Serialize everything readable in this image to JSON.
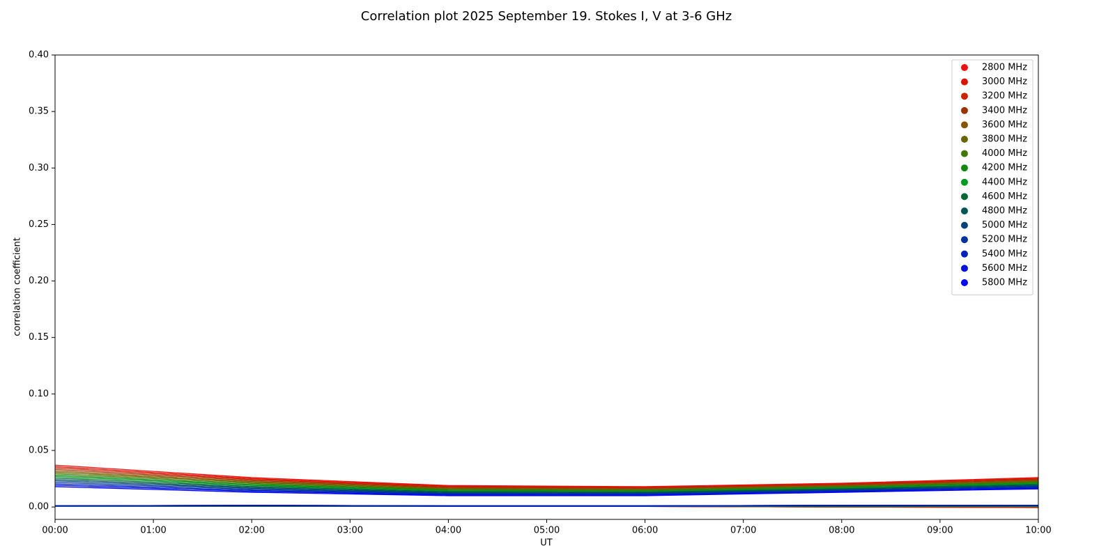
{
  "chart_data": {
    "type": "line",
    "title": "Correlation plot 2025 September 19. Stokes I, V at 3-6 GHz",
    "xlabel": "UT",
    "ylabel": "correlation coefficient",
    "x": [
      0,
      2,
      4,
      6,
      8,
      10
    ],
    "xlim": [
      0,
      10
    ],
    "xticks": [
      {
        "value": 0,
        "label": "00:00"
      },
      {
        "value": 1,
        "label": "01:00"
      },
      {
        "value": 2,
        "label": "02:00"
      },
      {
        "value": 3,
        "label": "03:00"
      },
      {
        "value": 4,
        "label": "04:00"
      },
      {
        "value": 5,
        "label": "05:00"
      },
      {
        "value": 6,
        "label": "06:00"
      },
      {
        "value": 7,
        "label": "07:00"
      },
      {
        "value": 8,
        "label": "08:00"
      },
      {
        "value": 9,
        "label": "09:00"
      },
      {
        "value": 10,
        "label": "10:00"
      }
    ],
    "ylim": [
      -0.011,
      0.4
    ],
    "yticks": [
      {
        "value": 0,
        "label": "0.00"
      },
      {
        "value": 0.05,
        "label": "0.05"
      },
      {
        "value": 0.1,
        "label": "0.10"
      },
      {
        "value": 0.15,
        "label": "0.15"
      },
      {
        "value": 0.2,
        "label": "0.20"
      },
      {
        "value": 0.25,
        "label": "0.25"
      },
      {
        "value": 0.3,
        "label": "0.30"
      },
      {
        "value": 0.35,
        "label": "0.35"
      },
      {
        "value": 0.4,
        "label": "0.40"
      }
    ],
    "legend": "upper right",
    "series": [
      {
        "name": "2800 MHz",
        "color": "#ee1111",
        "values": [
          0.037,
          0.026,
          0.019,
          0.018,
          0.021,
          0.026
        ],
        "values_v": [
          0.0005,
          0.0005,
          0.0005,
          0.0005,
          0.0,
          -0.0005
        ]
      },
      {
        "name": "3000 MHz",
        "color": "#dd1100",
        "values": [
          0.0357,
          0.0251,
          0.0184,
          0.0175,
          0.0205,
          0.0253
        ],
        "values_v": [
          0.0005,
          0.0005,
          0.0005,
          0.0005,
          0.0,
          -0.0005
        ]
      },
      {
        "name": "3200 MHz",
        "color": "#cc2200",
        "values": [
          0.0345,
          0.0243,
          0.0178,
          0.0169,
          0.0199,
          0.0247
        ],
        "values_v": [
          0.0005,
          0.0005,
          0.0005,
          0.0005,
          0.0,
          0.0
        ]
      },
      {
        "name": "3400 MHz",
        "color": "#993300",
        "values": [
          0.0332,
          0.0234,
          0.0172,
          0.0164,
          0.0194,
          0.024
        ],
        "values_v": [
          0.0005,
          0.0005,
          0.0005,
          0.0005,
          0.0,
          0.0
        ]
      },
      {
        "name": "3600 MHz",
        "color": "#885500",
        "values": [
          0.0319,
          0.0225,
          0.0166,
          0.0159,
          0.0189,
          0.0233
        ],
        "values_v": [
          0.0005,
          0.0005,
          0.0005,
          0.0005,
          0.0005,
          0.0
        ]
      },
      {
        "name": "3800 MHz",
        "color": "#666600",
        "values": [
          0.0307,
          0.0217,
          0.016,
          0.0153,
          0.0183,
          0.0227
        ],
        "values_v": [
          0.0005,
          0.0005,
          0.0005,
          0.0005,
          0.0005,
          0.0005
        ]
      },
      {
        "name": "4000 MHz",
        "color": "#447700",
        "values": [
          0.0294,
          0.0208,
          0.0154,
          0.0148,
          0.0178,
          0.022
        ],
        "values_v": [
          0.0005,
          0.0005,
          0.0005,
          0.0005,
          0.0005,
          0.0005
        ]
      },
      {
        "name": "4200 MHz",
        "color": "#118811",
        "values": [
          0.0281,
          0.0199,
          0.0148,
          0.0143,
          0.0173,
          0.0213
        ],
        "values_v": [
          0.0005,
          0.001,
          0.0005,
          0.0005,
          0.0005,
          0.0005
        ]
      },
      {
        "name": "4400 MHz",
        "color": "#009922",
        "values": [
          0.0269,
          0.0191,
          0.0142,
          0.0137,
          0.0167,
          0.0207
        ],
        "values_v": [
          0.0005,
          0.001,
          0.0005,
          0.0005,
          0.001,
          0.001
        ]
      },
      {
        "name": "4600 MHz",
        "color": "#006633",
        "values": [
          0.0256,
          0.0182,
          0.0136,
          0.0132,
          0.0162,
          0.02
        ],
        "values_v": [
          0.001,
          0.001,
          0.0005,
          0.0005,
          0.001,
          0.001
        ]
      },
      {
        "name": "4800 MHz",
        "color": "#005555",
        "values": [
          0.0243,
          0.0173,
          0.013,
          0.0127,
          0.0157,
          0.0193
        ],
        "values_v": [
          0.001,
          0.001,
          0.001,
          0.001,
          0.001,
          0.001
        ]
      },
      {
        "name": "5000 MHz",
        "color": "#004477",
        "values": [
          0.0231,
          0.0165,
          0.0124,
          0.0121,
          0.0151,
          0.0187
        ],
        "values_v": [
          0.001,
          0.001,
          0.001,
          0.001,
          0.001,
          0.001
        ]
      },
      {
        "name": "5200 MHz",
        "color": "#003399",
        "values": [
          0.0218,
          0.0156,
          0.0118,
          0.0116,
          0.0146,
          0.018
        ],
        "values_v": [
          0.001,
          0.001,
          0.001,
          0.001,
          0.001,
          0.0015
        ]
      },
      {
        "name": "5400 MHz",
        "color": "#0022bb",
        "values": [
          0.0205,
          0.0147,
          0.0112,
          0.0111,
          0.0141,
          0.0173
        ],
        "values_v": [
          0.001,
          0.0015,
          0.001,
          0.001,
          0.0015,
          0.0015
        ]
      },
      {
        "name": "5600 MHz",
        "color": "#0011dd",
        "values": [
          0.0193,
          0.0139,
          0.0106,
          0.0105,
          0.0135,
          0.0167
        ],
        "values_v": [
          0.001,
          0.0015,
          0.001,
          0.001,
          0.0015,
          0.0015
        ]
      },
      {
        "name": "5800 MHz",
        "color": "#0000ff",
        "values": [
          0.018,
          0.013,
          0.01,
          0.01,
          0.013,
          0.016
        ],
        "values_v": [
          0.001,
          0.0015,
          0.001,
          0.001,
          0.0015,
          0.0015
        ]
      }
    ]
  }
}
